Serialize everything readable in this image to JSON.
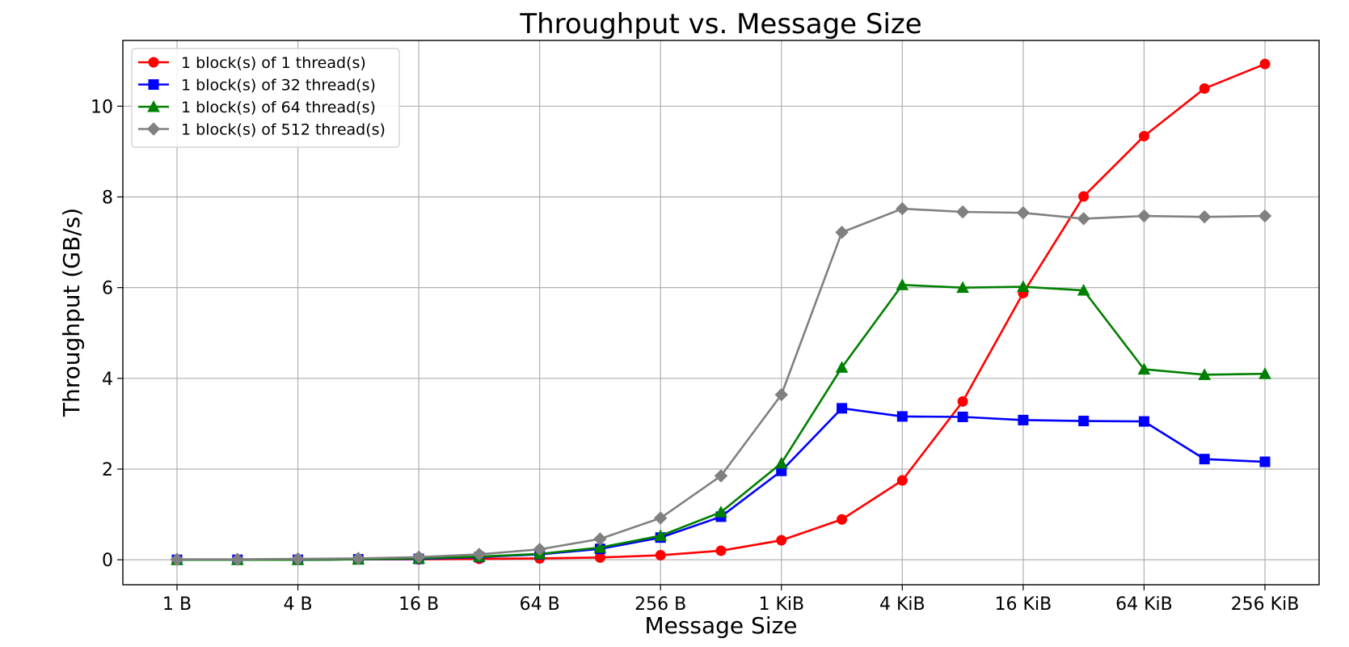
{
  "chart_data": {
    "type": "line",
    "title": "Throughput vs. Message Size",
    "xlabel": "Message Size",
    "ylabel": "Throughput (GB/s)",
    "x": [
      "1 B",
      "2 B",
      "4 B",
      "8 B",
      "16 B",
      "32 B",
      "64 B",
      "128 B",
      "256 B",
      "512 B",
      "1 KiB",
      "2 KiB",
      "4 KiB",
      "8 KiB",
      "16 KiB",
      "32 KiB",
      "64 KiB",
      "128 KiB",
      "256 KiB"
    ],
    "xticks": [
      "1 B",
      "4 B",
      "16 B",
      "64 B",
      "256 B",
      "1 KiB",
      "4 KiB",
      "16 KiB",
      "64 KiB",
      "256 KiB"
    ],
    "yticks": [
      0,
      2,
      4,
      6,
      8,
      10
    ],
    "ylim": [
      -0.55,
      11.45
    ],
    "grid": true,
    "legend_position": "top-left",
    "series": [
      {
        "name": "1 block(s) of 1 thread(s)",
        "color": "#ff0000",
        "marker": "circle",
        "values": [
          0.0,
          0.0,
          0.0,
          0.01,
          0.01,
          0.02,
          0.03,
          0.05,
          0.1,
          0.2,
          0.43,
          0.89,
          1.75,
          3.49,
          5.88,
          8.01,
          9.34,
          10.39,
          10.93
        ]
      },
      {
        "name": "1 block(s) of 32 thread(s)",
        "color": "#0000ff",
        "marker": "square",
        "values": [
          0.0,
          0.0,
          0.0,
          0.01,
          0.02,
          0.06,
          0.12,
          0.24,
          0.49,
          0.95,
          1.96,
          3.34,
          3.16,
          3.15,
          3.08,
          3.06,
          3.05,
          2.22,
          2.16
        ]
      },
      {
        "name": "1 block(s) of 64 thread(s)",
        "color": "#008000",
        "marker": "triangle",
        "values": [
          0.0,
          0.0,
          0.0,
          0.01,
          0.03,
          0.07,
          0.13,
          0.27,
          0.53,
          1.05,
          2.13,
          4.24,
          6.06,
          6.0,
          6.02,
          5.94,
          4.2,
          4.08,
          4.1
        ]
      },
      {
        "name": "1 block(s) of 512 thread(s)",
        "color": "#808080",
        "marker": "diamond",
        "values": [
          0.01,
          0.01,
          0.02,
          0.03,
          0.06,
          0.12,
          0.23,
          0.46,
          0.92,
          1.85,
          3.64,
          7.22,
          7.74,
          7.67,
          7.65,
          7.52,
          7.58,
          7.56,
          7.58
        ]
      }
    ]
  }
}
